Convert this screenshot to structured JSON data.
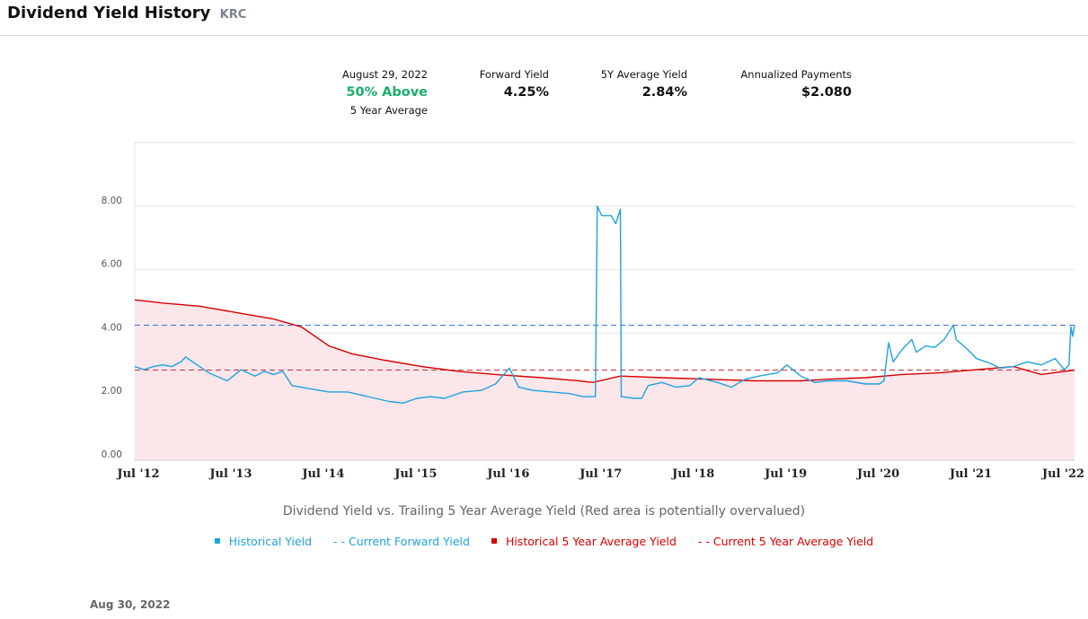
{
  "header": {
    "title": "Dividend Yield History",
    "ticker": "KRC"
  },
  "stats": {
    "date_label": "August 29, 2022",
    "status": "50% Above",
    "status_sub": "5 Year Average",
    "forward_label": "Forward Yield",
    "forward_value": "4.25%",
    "avg_label": "5Y Average Yield",
    "avg_value": "2.84%",
    "payments_label": "Annualized Payments",
    "payments_value": "$2.080"
  },
  "caption": "Dividend Yield vs. Trailing 5 Year Average Yield (Red area is potentially overvalued)",
  "legend": {
    "historical": "Historical Yield",
    "forward": "- - Current Forward Yield",
    "avg_hist": "Historical 5 Year Average Yield",
    "avg_current": "- - Current 5 Year Average Yield"
  },
  "footer_date": "Aug 30, 2022",
  "colors": {
    "blue": "#1ea3dd",
    "red": "#d40000",
    "fill": "#fbe6ea",
    "green": "#1aaf6c",
    "dash_blue": "#3b6fd6",
    "dash_red": "#c8323c"
  },
  "chart_data": {
    "type": "line",
    "xlim": [
      2012.5,
      2022.66
    ],
    "ylim": [
      0,
      10
    ],
    "y_ticks": [
      {
        "v": 0,
        "label": "0.00"
      },
      {
        "v": 2,
        "label": "2.00"
      },
      {
        "v": 4,
        "label": "4.00"
      },
      {
        "v": 6,
        "label": "6.00"
      },
      {
        "v": 8,
        "label": "8.00"
      }
    ],
    "x_ticks": [
      {
        "v": 2012.5,
        "label": "Jul '12"
      },
      {
        "v": 2013.5,
        "label": "Jul '13"
      },
      {
        "v": 2014.5,
        "label": "Jul '14"
      },
      {
        "v": 2015.5,
        "label": "Jul '15"
      },
      {
        "v": 2016.5,
        "label": "Jul '16"
      },
      {
        "v": 2017.5,
        "label": "Jul '17"
      },
      {
        "v": 2018.5,
        "label": "Jul '18"
      },
      {
        "v": 2019.5,
        "label": "Jul '19"
      },
      {
        "v": 2020.5,
        "label": "Jul '20"
      },
      {
        "v": 2021.5,
        "label": "Jul '21"
      },
      {
        "v": 2022.5,
        "label": "Jul '22"
      }
    ],
    "current_forward_yield": 4.25,
    "current_5y_average": 2.84,
    "series": [
      {
        "name": "Historical Yield",
        "points": [
          [
            2012.5,
            2.95
          ],
          [
            2012.6,
            2.85
          ],
          [
            2012.7,
            2.95
          ],
          [
            2012.8,
            3.0
          ],
          [
            2012.9,
            2.95
          ],
          [
            2013.0,
            3.1
          ],
          [
            2013.05,
            3.25
          ],
          [
            2013.15,
            3.05
          ],
          [
            2013.3,
            2.75
          ],
          [
            2013.5,
            2.5
          ],
          [
            2013.65,
            2.85
          ],
          [
            2013.8,
            2.65
          ],
          [
            2013.9,
            2.8
          ],
          [
            2014.0,
            2.7
          ],
          [
            2014.1,
            2.8
          ],
          [
            2014.2,
            2.35
          ],
          [
            2014.4,
            2.25
          ],
          [
            2014.6,
            2.15
          ],
          [
            2014.8,
            2.15
          ],
          [
            2014.95,
            2.05
          ],
          [
            2015.1,
            1.95
          ],
          [
            2015.25,
            1.85
          ],
          [
            2015.4,
            1.8
          ],
          [
            2015.55,
            1.95
          ],
          [
            2015.7,
            2.0
          ],
          [
            2015.85,
            1.95
          ],
          [
            2016.05,
            2.15
          ],
          [
            2016.25,
            2.2
          ],
          [
            2016.4,
            2.4
          ],
          [
            2016.55,
            2.9
          ],
          [
            2016.65,
            2.3
          ],
          [
            2016.8,
            2.2
          ],
          [
            2017.0,
            2.15
          ],
          [
            2017.2,
            2.1
          ],
          [
            2017.35,
            2.0
          ],
          [
            2017.48,
            2.0
          ],
          [
            2017.5,
            8.0
          ],
          [
            2017.55,
            7.7
          ],
          [
            2017.65,
            7.7
          ],
          [
            2017.7,
            7.45
          ],
          [
            2017.75,
            7.9
          ],
          [
            2017.76,
            2.0
          ],
          [
            2017.9,
            1.95
          ],
          [
            2017.98,
            1.95
          ],
          [
            2018.05,
            2.35
          ],
          [
            2018.2,
            2.45
          ],
          [
            2018.35,
            2.3
          ],
          [
            2018.5,
            2.35
          ],
          [
            2018.6,
            2.6
          ],
          [
            2018.8,
            2.45
          ],
          [
            2018.95,
            2.3
          ],
          [
            2019.1,
            2.55
          ],
          [
            2019.25,
            2.65
          ],
          [
            2019.45,
            2.75
          ],
          [
            2019.55,
            3.0
          ],
          [
            2019.7,
            2.65
          ],
          [
            2019.85,
            2.45
          ],
          [
            2020.0,
            2.5
          ],
          [
            2020.2,
            2.5
          ],
          [
            2020.4,
            2.4
          ],
          [
            2020.55,
            2.4
          ],
          [
            2020.6,
            2.5
          ],
          [
            2020.65,
            3.7
          ],
          [
            2020.7,
            3.1
          ],
          [
            2020.8,
            3.5
          ],
          [
            2020.9,
            3.8
          ],
          [
            2020.95,
            3.4
          ],
          [
            2021.05,
            3.6
          ],
          [
            2021.15,
            3.55
          ],
          [
            2021.25,
            3.8
          ],
          [
            2021.35,
            4.25
          ],
          [
            2021.38,
            3.8
          ],
          [
            2021.5,
            3.5
          ],
          [
            2021.6,
            3.2
          ],
          [
            2021.75,
            3.05
          ],
          [
            2021.85,
            2.9
          ],
          [
            2022.0,
            2.95
          ],
          [
            2022.15,
            3.1
          ],
          [
            2022.3,
            3.0
          ],
          [
            2022.45,
            3.2
          ],
          [
            2022.55,
            2.85
          ],
          [
            2022.6,
            3.0
          ],
          [
            2022.62,
            4.2
          ],
          [
            2022.64,
            3.9
          ],
          [
            2022.66,
            4.25
          ]
        ]
      },
      {
        "name": "Historical 5 Year Average Yield",
        "points": [
          [
            2012.5,
            5.05
          ],
          [
            2012.8,
            4.95
          ],
          [
            2013.2,
            4.85
          ],
          [
            2013.6,
            4.65
          ],
          [
            2014.0,
            4.45
          ],
          [
            2014.3,
            4.2
          ],
          [
            2014.6,
            3.6
          ],
          [
            2014.85,
            3.35
          ],
          [
            2015.2,
            3.15
          ],
          [
            2015.6,
            2.95
          ],
          [
            2016.0,
            2.8
          ],
          [
            2016.4,
            2.7
          ],
          [
            2016.9,
            2.6
          ],
          [
            2017.3,
            2.5
          ],
          [
            2017.45,
            2.45
          ],
          [
            2017.75,
            2.65
          ],
          [
            2018.2,
            2.6
          ],
          [
            2018.7,
            2.55
          ],
          [
            2019.2,
            2.5
          ],
          [
            2019.7,
            2.5
          ],
          [
            2020.0,
            2.55
          ],
          [
            2020.4,
            2.6
          ],
          [
            2020.8,
            2.7
          ],
          [
            2021.2,
            2.75
          ],
          [
            2021.6,
            2.85
          ],
          [
            2022.0,
            2.95
          ],
          [
            2022.3,
            2.7
          ],
          [
            2022.66,
            2.84
          ]
        ]
      }
    ]
  }
}
